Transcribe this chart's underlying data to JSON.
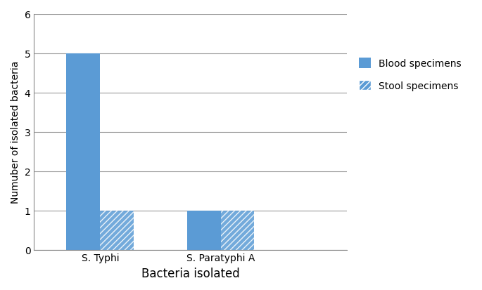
{
  "categories": [
    "S. Typhi",
    "S. Paratyphi A"
  ],
  "blood_specimens": [
    5,
    1
  ],
  "stool_specimens": [
    1,
    1
  ],
  "bar_color_blood": "#5B9BD5",
  "xlabel": "Bacteria isolated",
  "ylabel": "Numuber of isolated bacteria",
  "ylim": [
    0,
    6
  ],
  "yticks": [
    0,
    1,
    2,
    3,
    4,
    5,
    6
  ],
  "legend_blood": "Blood specimens",
  "legend_stool": "Stool specimens",
  "bar_width": 0.28,
  "x_positions": [
    0.55,
    1.55
  ],
  "xlim": [
    0.0,
    2.6
  ],
  "grid_color": "#999999",
  "grid_linewidth": 0.8,
  "xlabel_fontsize": 12,
  "ylabel_fontsize": 10,
  "tick_fontsize": 10,
  "legend_fontsize": 10
}
